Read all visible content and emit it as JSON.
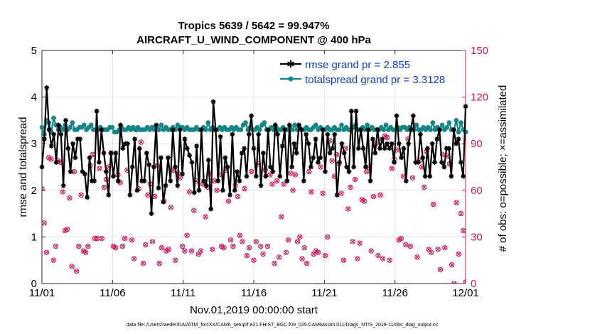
{
  "chart_data": {
    "type": "line",
    "title": "Tropics 5639 / 5642 = 99.947%",
    "subtitle": "AIRCRAFT_U_WIND_COMPONENT @ 400 hPa",
    "xlabel": "Nov.01,2019 00:00:00 start",
    "ylabel": "rmse and totalspread",
    "ylabel_right": "# of obs: o=possible; ×=assimilated",
    "xlim": [
      0,
      30
    ],
    "ylim": [
      0,
      5
    ],
    "ylim_right": [
      0,
      150
    ],
    "x_ticks": [
      0,
      5,
      10,
      15,
      20,
      25,
      30
    ],
    "x_tick_labels": [
      "11/01",
      "11/06",
      "11/11",
      "11/16",
      "11/21",
      "11/26",
      "12/01"
    ],
    "y_ticks": [
      "0",
      "1",
      "2",
      "3",
      "4",
      "5"
    ],
    "y_ticks_right": [
      "0",
      "30",
      "60",
      "90",
      "120",
      "150"
    ],
    "legend_position": "top-right",
    "colors": {
      "rmse": "#000000",
      "spread": "#138785",
      "obs": "#d6185c",
      "axis_right": "#d6185c",
      "legend_text": "#0a3fd6"
    },
    "series": [
      {
        "name": "rmse grand pr = 2.855",
        "key": "rmse",
        "values": [
          2.5,
          3.1,
          4.2,
          3.3,
          2.95,
          3.2,
          2.6,
          3.4,
          3.2,
          2.1,
          3.5,
          2.9,
          2.4,
          3.0,
          2.7,
          3.1,
          3.1,
          2.4,
          2.35,
          1.85,
          2.7,
          2.2,
          2.2,
          3.7,
          2.6,
          3.3,
          2.8,
          2.4,
          1.9,
          2.8,
          2.3,
          2.8,
          2.2,
          3.4,
          2.9,
          3.0,
          3.0,
          1.9,
          2.5,
          3.1,
          2.0,
          2.9,
          2.2,
          2.2,
          2.8,
          2.55,
          1.5,
          2.5,
          3.4,
          2.05,
          2.7,
          1.75,
          2.1,
          2.7,
          2.2,
          3.3,
          2.5,
          2.1,
          3.3,
          2.35,
          3.1,
          2.9,
          2.75,
          2.6,
          1.95,
          2.95,
          2.0,
          3.3,
          2.2,
          2.1,
          2.65,
          1.6,
          3.9,
          3.3,
          2.2,
          3.15,
          2.0,
          2.7,
          2.5,
          1.9,
          3.2,
          2.0,
          2.4,
          2.2,
          2.8,
          2.9,
          2.3,
          3.2,
          3.6,
          2.9,
          2.3,
          3.2,
          2.1,
          2.8,
          2.3,
          3.3,
          2.5,
          2.4,
          3.4,
          3.2,
          2.3,
          2.95,
          3.3,
          2.2,
          3.4,
          2.5,
          3.0,
          2.8,
          3.4,
          3.3,
          2.2,
          3.2,
          3.0,
          2.5,
          2.7,
          3.1,
          2.6,
          2.7,
          3.3,
          2.4,
          3.2,
          2.8,
          2.9,
          3.2,
          1.9,
          2.6,
          3.0,
          2.8,
          2.5,
          2.4,
          3.7,
          2.5,
          3.7,
          2.9,
          3.3,
          2.9,
          2.5,
          3.3,
          2.2,
          3.1,
          2.8,
          3.3,
          2.9,
          3.1,
          2.9,
          3.0,
          2.9,
          3.0,
          2.6,
          3.6,
          3.0,
          2.7,
          2.9,
          2.2,
          3.0,
          3.3,
          3.6,
          2.6,
          2.6,
          3.2,
          2.7,
          2.3,
          2.9,
          2.3,
          3.0,
          2.6,
          3.1,
          3.3,
          2.6,
          2.5,
          2.9,
          2.9,
          2.3,
          3.3,
          3.0,
          3.1,
          2.6,
          2.3,
          3.8
        ]
      },
      {
        "name": "totalspread grand pr = 3.3128",
        "key": "spread",
        "values": [
          3.35,
          3.2,
          3.5,
          3.45,
          3.25,
          3.55,
          3.4,
          3.3,
          3.35,
          3.3,
          3.4,
          3.3,
          3.35,
          3.45,
          3.3,
          3.3,
          3.35,
          3.35,
          3.4,
          3.3,
          3.35,
          3.4,
          3.3,
          3.3,
          3.3,
          3.35,
          3.3,
          3.3,
          3.3,
          3.35,
          3.35,
          3.25,
          3.25,
          3.3,
          3.35,
          3.3,
          3.3,
          3.35,
          3.3,
          3.35,
          3.3,
          3.35,
          3.3,
          3.3,
          3.3,
          3.35,
          3.3,
          3.35,
          3.3,
          3.35,
          3.3,
          3.4,
          3.3,
          3.35,
          3.3,
          3.3,
          3.35,
          3.3,
          3.4,
          3.35,
          3.35,
          3.3,
          3.35,
          3.3,
          3.3,
          3.3,
          3.35,
          3.3,
          3.3,
          3.35,
          3.3,
          3.45,
          3.3,
          3.35,
          3.3,
          3.3,
          3.35,
          3.3,
          3.35,
          3.3,
          3.3,
          3.35,
          3.3,
          3.35,
          3.3,
          3.3,
          3.4,
          3.45,
          3.3,
          3.35,
          3.3,
          3.3,
          3.35,
          3.3,
          3.4,
          3.45,
          3.3,
          3.3,
          3.35,
          3.3,
          3.35,
          3.3,
          3.3,
          3.35,
          3.3,
          3.3,
          3.35,
          3.3,
          3.4,
          3.3,
          3.35,
          3.3,
          3.3,
          3.35,
          3.3,
          3.3,
          3.35,
          3.4,
          3.3,
          3.35,
          3.3,
          3.3,
          3.35,
          3.3,
          3.3,
          3.35,
          3.3,
          3.3,
          3.4,
          3.3,
          3.35,
          3.3,
          3.3,
          3.35,
          3.4,
          3.3,
          3.3,
          3.35,
          3.3,
          3.4,
          3.3,
          3.35,
          3.3,
          3.3,
          3.3,
          3.35,
          3.3,
          3.4,
          3.3,
          3.35,
          3.3,
          3.3,
          3.35,
          3.3,
          3.35,
          3.35,
          3.3,
          3.35,
          3.3,
          3.3,
          3.4,
          3.3,
          3.3,
          3.35,
          3.3,
          3.35,
          3.3,
          3.45,
          3.3,
          3.35,
          3.3,
          3.4,
          3.3,
          3.35,
          3.45,
          3.3,
          3.3,
          3.5,
          3.25,
          3.45,
          3.3,
          3.25
        ]
      },
      {
        "name": "# of obs",
        "key": "obs",
        "values": [
          61,
          39,
          20,
          81,
          80,
          15,
          24,
          79,
          78,
          59,
          34,
          35,
          55,
          11,
          72,
          8,
          24,
          57,
          21,
          20,
          24,
          76,
          83,
          29,
          29,
          74,
          29,
          62,
          67,
          75,
          84,
          24,
          23,
          70,
          65,
          24,
          29,
          73,
          100,
          28,
          16,
          99,
          61,
          91,
          13,
          25,
          57,
          64,
          27,
          56,
          76,
          13,
          23,
          53,
          21,
          22,
          49,
          73,
          15,
          71,
          68,
          24,
          21,
          31,
          59,
          21,
          47,
          66,
          19,
          21,
          64,
          43,
          62,
          71,
          22,
          66,
          60,
          70,
          24,
          23,
          73,
          53,
          28,
          24,
          63,
          56,
          31,
          27,
          61,
          18,
          23,
          72,
          15,
          27,
          77,
          24,
          19,
          73,
          24,
          70,
          64,
          13,
          66,
          17,
          43,
          64,
          20,
          28,
          71,
          60,
          70,
          27,
          30,
          16,
          23,
          13,
          72,
          59,
          19,
          21,
          20,
          75,
          58,
          18,
          30,
          92,
          79,
          69,
          83,
          77,
          58,
          15,
          87,
          48,
          62,
          27,
          67,
          16,
          26,
          54,
          53,
          72,
          75,
          21,
          56,
          90,
          18,
          57,
          16,
          95,
          94,
          15,
          74,
          80,
          86,
          28,
          29,
          69,
          25,
          93,
          24,
          68,
          100,
          17,
          79,
          75,
          62,
          85,
          22,
          20,
          51,
          100,
          22,
          9,
          83,
          23,
          82,
          77,
          12,
          0,
          52,
          19,
          45,
          34,
          1
        ]
      }
    ]
  },
  "footer": "data file: /Users/raeder/DAI/ATM_forcXX/CAM6_setup/f.e21.FHIST_BGC.f09_025.CAM6assim.011/Diags_NTrS_2019-11/obs_diag_output.nc"
}
